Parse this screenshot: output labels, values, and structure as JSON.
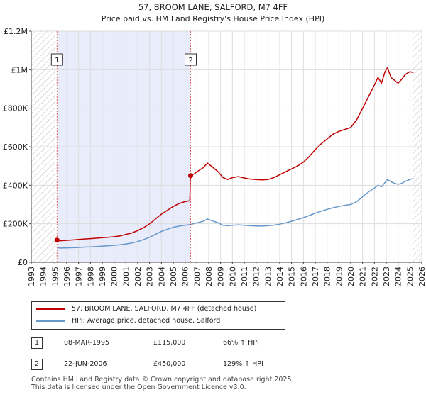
{
  "header": {
    "title": "57, BROOM LANE, SALFORD, M7 4FF",
    "subtitle": "Price paid vs. HM Land Registry's House Price Index (HPI)"
  },
  "chart_data": {
    "type": "line",
    "title": "57, BROOM LANE, SALFORD, M7 4FF",
    "subtitle": "Price paid vs. HM Land Registry's House Price Index (HPI)",
    "xlabel": "",
    "ylabel": "",
    "xlim": [
      1993,
      2026
    ],
    "ylim": [
      0,
      1200000
    ],
    "x_ticks": [
      "1993",
      "1994",
      "1995",
      "1996",
      "1997",
      "1998",
      "1999",
      "2000",
      "2001",
      "2002",
      "2003",
      "2004",
      "2005",
      "2006",
      "2007",
      "2008",
      "2009",
      "2010",
      "2011",
      "2012",
      "2013",
      "2014",
      "2015",
      "2016",
      "2017",
      "2018",
      "2019",
      "2020",
      "2021",
      "2022",
      "2023",
      "2024",
      "2025",
      "2026"
    ],
    "y_ticks": [
      {
        "value": 0,
        "label": "£0"
      },
      {
        "value": 200000,
        "label": "£200K"
      },
      {
        "value": 400000,
        "label": "£400K"
      },
      {
        "value": 600000,
        "label": "£600K"
      },
      {
        "value": 800000,
        "label": "£800K"
      },
      {
        "value": 1000000,
        "label": "£1M"
      },
      {
        "value": 1200000,
        "label": "£1.2M"
      }
    ],
    "grid": true,
    "hatched_ranges": [
      [
        1993,
        1995.0
      ],
      [
        2025.2,
        2026
      ]
    ],
    "shaded_range": [
      1995.18,
      2006.47
    ],
    "series": [
      {
        "name": "57, BROOM LANE, SALFORD, M7 4FF (detached house)",
        "color": "#c00000",
        "points": [
          [
            1995.18,
            115000
          ],
          [
            1995.5,
            112000
          ],
          [
            1996,
            114000
          ],
          [
            1996.5,
            116000
          ],
          [
            1997,
            119000
          ],
          [
            1997.5,
            121000
          ],
          [
            1998,
            123000
          ],
          [
            1998.5,
            125000
          ],
          [
            1999,
            128000
          ],
          [
            1999.5,
            130000
          ],
          [
            2000,
            133000
          ],
          [
            2000.5,
            137000
          ],
          [
            2001,
            145000
          ],
          [
            2001.5,
            152000
          ],
          [
            2002,
            165000
          ],
          [
            2002.5,
            180000
          ],
          [
            2003,
            200000
          ],
          [
            2003.5,
            225000
          ],
          [
            2004,
            250000
          ],
          [
            2004.5,
            270000
          ],
          [
            2005,
            290000
          ],
          [
            2005.5,
            305000
          ],
          [
            2006,
            315000
          ],
          [
            2006.4,
            320000
          ],
          [
            2006.47,
            450000
          ],
          [
            2006.8,
            460000
          ],
          [
            2007,
            470000
          ],
          [
            2007.5,
            490000
          ],
          [
            2007.9,
            515000
          ],
          [
            2008.3,
            495000
          ],
          [
            2008.8,
            470000
          ],
          [
            2009.2,
            440000
          ],
          [
            2009.6,
            430000
          ],
          [
            2010,
            440000
          ],
          [
            2010.5,
            445000
          ],
          [
            2011,
            438000
          ],
          [
            2011.5,
            432000
          ],
          [
            2012,
            430000
          ],
          [
            2012.5,
            428000
          ],
          [
            2013,
            430000
          ],
          [
            2013.5,
            440000
          ],
          [
            2014,
            455000
          ],
          [
            2014.5,
            470000
          ],
          [
            2015,
            485000
          ],
          [
            2015.5,
            500000
          ],
          [
            2016,
            520000
          ],
          [
            2016.5,
            550000
          ],
          [
            2017,
            585000
          ],
          [
            2017.5,
            615000
          ],
          [
            2018,
            640000
          ],
          [
            2018.5,
            665000
          ],
          [
            2019,
            680000
          ],
          [
            2019.5,
            690000
          ],
          [
            2020,
            700000
          ],
          [
            2020.5,
            740000
          ],
          [
            2021,
            800000
          ],
          [
            2021.5,
            860000
          ],
          [
            2022,
            920000
          ],
          [
            2022.3,
            960000
          ],
          [
            2022.6,
            930000
          ],
          [
            2022.9,
            990000
          ],
          [
            2023.1,
            1010000
          ],
          [
            2023.4,
            960000
          ],
          [
            2023.7,
            945000
          ],
          [
            2024,
            930000
          ],
          [
            2024.3,
            950000
          ],
          [
            2024.6,
            975000
          ],
          [
            2025,
            990000
          ],
          [
            2025.3,
            985000
          ]
        ]
      },
      {
        "name": "HPI: Average price, detached house, Salford",
        "color": "#6699cc",
        "points": [
          [
            1995.18,
            75000
          ],
          [
            1995.5,
            74000
          ],
          [
            1996,
            75000
          ],
          [
            1996.5,
            76000
          ],
          [
            1997,
            77000
          ],
          [
            1997.5,
            79000
          ],
          [
            1998,
            80000
          ],
          [
            1998.5,
            82000
          ],
          [
            1999,
            84000
          ],
          [
            1999.5,
            86000
          ],
          [
            2000,
            88000
          ],
          [
            2000.5,
            91000
          ],
          [
            2001,
            95000
          ],
          [
            2001.5,
            100000
          ],
          [
            2002,
            108000
          ],
          [
            2002.5,
            118000
          ],
          [
            2003,
            130000
          ],
          [
            2003.5,
            145000
          ],
          [
            2004,
            160000
          ],
          [
            2004.5,
            172000
          ],
          [
            2005,
            182000
          ],
          [
            2005.5,
            188000
          ],
          [
            2006,
            192000
          ],
          [
            2006.5,
            197000
          ],
          [
            2007,
            205000
          ],
          [
            2007.5,
            212000
          ],
          [
            2007.9,
            225000
          ],
          [
            2008.3,
            215000
          ],
          [
            2008.8,
            205000
          ],
          [
            2009.2,
            192000
          ],
          [
            2009.6,
            190000
          ],
          [
            2010,
            192000
          ],
          [
            2010.5,
            194000
          ],
          [
            2011,
            192000
          ],
          [
            2011.5,
            190000
          ],
          [
            2012,
            189000
          ],
          [
            2012.5,
            188000
          ],
          [
            2013,
            190000
          ],
          [
            2013.5,
            193000
          ],
          [
            2014,
            198000
          ],
          [
            2014.5,
            205000
          ],
          [
            2015,
            213000
          ],
          [
            2015.5,
            222000
          ],
          [
            2016,
            232000
          ],
          [
            2016.5,
            243000
          ],
          [
            2017,
            255000
          ],
          [
            2017.5,
            265000
          ],
          [
            2018,
            275000
          ],
          [
            2018.5,
            283000
          ],
          [
            2019,
            290000
          ],
          [
            2019.5,
            296000
          ],
          [
            2020,
            300000
          ],
          [
            2020.5,
            315000
          ],
          [
            2021,
            340000
          ],
          [
            2021.5,
            365000
          ],
          [
            2022,
            385000
          ],
          [
            2022.3,
            400000
          ],
          [
            2022.6,
            392000
          ],
          [
            2022.9,
            415000
          ],
          [
            2023.1,
            430000
          ],
          [
            2023.4,
            418000
          ],
          [
            2023.7,
            410000
          ],
          [
            2024,
            405000
          ],
          [
            2024.3,
            410000
          ],
          [
            2024.6,
            420000
          ],
          [
            2025,
            430000
          ],
          [
            2025.3,
            435000
          ]
        ]
      }
    ],
    "markers": [
      {
        "label": "1",
        "x": 1995.18,
        "y": 115000
      },
      {
        "label": "2",
        "x": 2006.47,
        "y": 450000
      }
    ]
  },
  "legend": {
    "items": [
      {
        "label": "57, BROOM LANE, SALFORD, M7 4FF (detached house)",
        "color": "#c00000"
      },
      {
        "label": "HPI: Average price, detached house, Salford",
        "color": "#6699cc"
      }
    ]
  },
  "sales": [
    {
      "num": "1",
      "date": "08-MAR-1995",
      "price": "£115,000",
      "hpi": "66% ↑ HPI"
    },
    {
      "num": "2",
      "date": "22-JUN-2006",
      "price": "£450,000",
      "hpi": "129% ↑ HPI"
    }
  ],
  "footer": {
    "line1": "Contains HM Land Registry data © Crown copyright and database right 2025.",
    "line2": "This data is licensed under the Open Government Licence v3.0."
  }
}
